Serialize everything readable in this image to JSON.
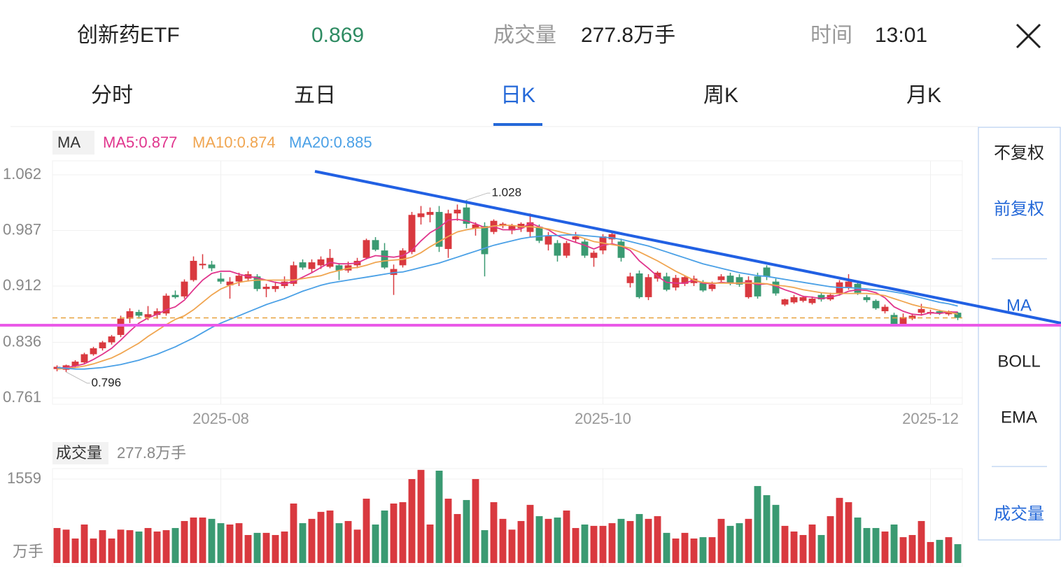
{
  "header": {
    "name": "创新药ETF",
    "price": "0.869",
    "volume_label": "成交量",
    "volume_value": "277.8万手",
    "time_label": "时间",
    "time": "13:01"
  },
  "tabs": [
    {
      "label": "分时",
      "active": false
    },
    {
      "label": "五日",
      "active": false
    },
    {
      "label": "日K",
      "active": true
    },
    {
      "label": "周K",
      "active": false
    },
    {
      "label": "月K",
      "active": false
    }
  ],
  "side_menu": [
    {
      "label": "不复权",
      "active": false
    },
    {
      "label": "前复权",
      "active": true
    },
    {
      "label": "MA",
      "active": true
    },
    {
      "label": "BOLL",
      "active": false
    },
    {
      "label": "EMA",
      "active": false
    },
    {
      "label": "成交量",
      "active": true
    }
  ],
  "chart_data": {
    "type": "candlestick",
    "indicator": "MA",
    "up_color": "#d9393f",
    "down_color": "#3a9a72",
    "last_color": "#e8a13c",
    "ylim": [
      0.7525,
      1.0762
    ],
    "yticks": [
      1.062,
      0.987,
      0.912,
      0.836,
      0.761
    ],
    "grid": true,
    "categories": [
      null,
      null,
      null,
      null,
      null,
      null,
      null,
      null,
      null,
      null,
      null,
      null,
      null,
      null,
      null,
      null,
      null,
      null,
      "2025-08",
      null,
      null,
      null,
      null,
      null,
      null,
      null,
      null,
      null,
      null,
      null,
      null,
      null,
      null,
      null,
      null,
      null,
      null,
      null,
      null,
      null,
      null,
      null,
      null,
      null,
      null,
      null,
      null,
      null,
      null,
      null,
      null,
      null,
      null,
      null,
      null,
      null,
      null,
      null,
      null,
      null,
      "2025-10",
      null,
      null,
      null,
      null,
      null,
      null,
      null,
      null,
      null,
      null,
      null,
      null,
      null,
      null,
      null,
      null,
      null,
      null,
      null,
      null,
      null,
      null,
      null,
      null,
      null,
      null,
      null,
      null,
      null,
      null,
      null,
      null,
      null,
      null,
      null,
      "2025-12",
      null,
      null,
      null
    ],
    "ohlc": [
      [
        0.8,
        0.805,
        0.797,
        0.803
      ],
      [
        0.799,
        0.806,
        0.796,
        0.805
      ],
      [
        0.804,
        0.812,
        0.802,
        0.81
      ],
      [
        0.809,
        0.822,
        0.807,
        0.82
      ],
      [
        0.82,
        0.83,
        0.818,
        0.828
      ],
      [
        0.828,
        0.838,
        0.825,
        0.836
      ],
      [
        0.836,
        0.846,
        0.833,
        0.844
      ],
      [
        0.846,
        0.872,
        0.843,
        0.868
      ],
      [
        0.868,
        0.882,
        0.862,
        0.878
      ],
      [
        0.877,
        0.88,
        0.868,
        0.872
      ],
      [
        0.87,
        0.885,
        0.866,
        0.874
      ],
      [
        0.873,
        0.882,
        0.868,
        0.878
      ],
      [
        0.875,
        0.902,
        0.872,
        0.899
      ],
      [
        0.9,
        0.906,
        0.895,
        0.897
      ],
      [
        0.898,
        0.921,
        0.895,
        0.918
      ],
      [
        0.92,
        0.952,
        0.918,
        0.946
      ],
      [
        0.94,
        0.955,
        0.935,
        0.942
      ],
      [
        0.941,
        0.946,
        0.932,
        0.936
      ],
      [
        0.922,
        0.93,
        0.915,
        0.918
      ],
      [
        0.913,
        0.924,
        0.895,
        0.918
      ],
      [
        0.918,
        0.93,
        0.912,
        0.926
      ],
      [
        0.922,
        0.932,
        0.918,
        0.928
      ],
      [
        0.925,
        0.928,
        0.905,
        0.908
      ],
      [
        0.908,
        0.915,
        0.897,
        0.911
      ],
      [
        0.908,
        0.918,
        0.904,
        0.912
      ],
      [
        0.912,
        0.925,
        0.909,
        0.918
      ],
      [
        0.915,
        0.945,
        0.912,
        0.94
      ],
      [
        0.944,
        0.948,
        0.934,
        0.937
      ],
      [
        0.935,
        0.948,
        0.93,
        0.944
      ],
      [
        0.94,
        0.952,
        0.935,
        0.948
      ],
      [
        0.938,
        0.962,
        0.936,
        0.95
      ],
      [
        0.94,
        0.943,
        0.92,
        0.933
      ],
      [
        0.933,
        0.945,
        0.93,
        0.94
      ],
      [
        0.94,
        0.95,
        0.936,
        0.946
      ],
      [
        0.95,
        0.976,
        0.948,
        0.974
      ],
      [
        0.974,
        0.978,
        0.959,
        0.961
      ],
      [
        0.96,
        0.97,
        0.935,
        0.937
      ],
      [
        0.927,
        0.941,
        0.9,
        0.935
      ],
      [
        0.94,
        0.963,
        0.937,
        0.96
      ],
      [
        0.958,
        1.012,
        0.955,
        1.008
      ],
      [
        1.005,
        1.02,
        0.995,
        1.01
      ],
      [
        1.008,
        1.018,
        0.998,
        1.012
      ],
      [
        1.012,
        1.02,
        0.958,
        0.965
      ],
      [
        0.962,
        1.015,
        0.95,
        1.01
      ],
      [
        1.01,
        1.022,
        1.0,
        1.015
      ],
      [
        1.018,
        1.028,
        0.99,
        0.996
      ],
      [
        0.99,
        0.998,
        0.98,
        0.995
      ],
      [
        0.993,
        0.998,
        0.925,
        0.955
      ],
      [
        0.985,
        1.002,
        0.982,
        1.0
      ],
      [
        0.993,
        0.998,
        0.99,
        0.996
      ],
      [
        0.987,
        0.996,
        0.982,
        0.993
      ],
      [
        0.99,
        0.998,
        0.985,
        0.996
      ],
      [
        0.985,
        1.01,
        0.978,
        0.998
      ],
      [
        0.992,
        0.995,
        0.97,
        0.973
      ],
      [
        0.968,
        0.985,
        0.96,
        0.98
      ],
      [
        0.97,
        0.974,
        0.945,
        0.953
      ],
      [
        0.953,
        0.973,
        0.95,
        0.97
      ],
      [
        0.975,
        0.985,
        0.97,
        0.979
      ],
      [
        0.972,
        0.975,
        0.95,
        0.953
      ],
      [
        0.95,
        0.96,
        0.938,
        0.957
      ],
      [
        0.96,
        0.982,
        0.955,
        0.979
      ],
      [
        0.975,
        0.985,
        0.97,
        0.982
      ],
      [
        0.972,
        0.976,
        0.945,
        0.95
      ],
      [
        0.916,
        0.93,
        0.91,
        0.925
      ],
      [
        0.929,
        0.933,
        0.895,
        0.897
      ],
      [
        0.897,
        0.928,
        0.893,
        0.924
      ],
      [
        0.922,
        0.932,
        0.918,
        0.93
      ],
      [
        0.925,
        0.93,
        0.905,
        0.907
      ],
      [
        0.91,
        0.927,
        0.906,
        0.923
      ],
      [
        0.915,
        0.926,
        0.912,
        0.924
      ],
      [
        0.916,
        0.926,
        0.912,
        0.922
      ],
      [
        0.916,
        0.92,
        0.904,
        0.906
      ],
      [
        0.908,
        0.918,
        0.905,
        0.914
      ],
      [
        0.92,
        0.928,
        0.917,
        0.925
      ],
      [
        0.926,
        0.93,
        0.913,
        0.916
      ],
      [
        0.924,
        0.928,
        0.911,
        0.914
      ],
      [
        0.897,
        0.925,
        0.895,
        0.92
      ],
      [
        0.925,
        0.93,
        0.895,
        0.898
      ],
      [
        0.937,
        0.94,
        0.92,
        0.925
      ],
      [
        0.918,
        0.922,
        0.899,
        0.902
      ],
      [
        0.887,
        0.895,
        0.885,
        0.894
      ],
      [
        0.89,
        0.9,
        0.888,
        0.897
      ],
      [
        0.892,
        0.899,
        0.89,
        0.897
      ],
      [
        0.889,
        0.898,
        0.887,
        0.895
      ],
      [
        0.9,
        0.903,
        0.891,
        0.894
      ],
      [
        0.894,
        0.903,
        0.892,
        0.9
      ],
      [
        0.902,
        0.92,
        0.899,
        0.917
      ],
      [
        0.91,
        0.928,
        0.907,
        0.918
      ],
      [
        0.915,
        0.918,
        0.9,
        0.903
      ],
      [
        0.897,
        0.9,
        0.89,
        0.893
      ],
      [
        0.892,
        0.894,
        0.88,
        0.882
      ],
      [
        0.878,
        0.887,
        0.875,
        0.884
      ],
      [
        0.873,
        0.876,
        0.858,
        0.86
      ],
      [
        0.86,
        0.875,
        0.858,
        0.87
      ],
      [
        0.868,
        0.875,
        0.866,
        0.872
      ],
      [
        0.876,
        0.888,
        0.872,
        0.881
      ],
      [
        0.875,
        0.88,
        0.873,
        0.877
      ],
      [
        0.878,
        0.88,
        0.873,
        0.875
      ],
      [
        0.874,
        0.879,
        0.872,
        0.878
      ],
      [
        0.876,
        0.877,
        0.866,
        0.869
      ]
    ],
    "ma": [
      {
        "name": "MA5:0.877",
        "color": "#e0358d",
        "values": [
          0.801,
          0.802,
          0.804,
          0.807,
          0.813,
          0.82,
          0.828,
          0.839,
          0.851,
          0.862,
          0.869,
          0.874,
          0.88,
          0.884,
          0.893,
          0.907,
          0.92,
          0.929,
          0.932,
          0.932,
          0.928,
          0.925,
          0.923,
          0.92,
          0.917,
          0.915,
          0.918,
          0.924,
          0.93,
          0.937,
          0.944,
          0.942,
          0.942,
          0.943,
          0.949,
          0.953,
          0.952,
          0.951,
          0.953,
          0.96,
          0.973,
          0.984,
          0.991,
          1.001,
          1.002,
          1.0,
          0.996,
          0.991,
          0.992,
          0.988,
          0.988,
          0.989,
          0.997,
          0.992,
          0.988,
          0.98,
          0.975,
          0.971,
          0.967,
          0.962,
          0.967,
          0.969,
          0.966,
          0.96,
          0.946,
          0.936,
          0.925,
          0.917,
          0.916,
          0.916,
          0.92,
          0.916,
          0.915,
          0.917,
          0.916,
          0.916,
          0.917,
          0.914,
          0.915,
          0.912,
          0.907,
          0.903,
          0.898,
          0.897,
          0.895,
          0.897,
          0.9,
          0.905,
          0.907,
          0.906,
          0.903,
          0.896,
          0.884,
          0.878,
          0.874,
          0.873,
          0.876,
          0.875,
          0.877,
          0.877
        ]
      },
      {
        "name": "MA10:0.874",
        "color": "#f0a550",
        "values": [
          0.8,
          0.801,
          0.802,
          0.804,
          0.807,
          0.811,
          0.815,
          0.821,
          0.828,
          0.835,
          0.844,
          0.852,
          0.86,
          0.867,
          0.872,
          0.88,
          0.89,
          0.9,
          0.908,
          0.913,
          0.917,
          0.919,
          0.92,
          0.92,
          0.92,
          0.92,
          0.92,
          0.922,
          0.924,
          0.926,
          0.93,
          0.933,
          0.936,
          0.937,
          0.94,
          0.944,
          0.946,
          0.947,
          0.948,
          0.951,
          0.957,
          0.965,
          0.972,
          0.979,
          0.985,
          0.988,
          0.99,
          0.991,
          0.993,
          0.994,
          0.994,
          0.992,
          0.992,
          0.991,
          0.989,
          0.986,
          0.983,
          0.98,
          0.976,
          0.972,
          0.97,
          0.968,
          0.966,
          0.963,
          0.958,
          0.952,
          0.946,
          0.939,
          0.932,
          0.926,
          0.92,
          0.917,
          0.916,
          0.916,
          0.916,
          0.916,
          0.916,
          0.916,
          0.915,
          0.913,
          0.912,
          0.91,
          0.907,
          0.905,
          0.903,
          0.902,
          0.902,
          0.902,
          0.902,
          0.902,
          0.901,
          0.899,
          0.895,
          0.891,
          0.887,
          0.884,
          0.882,
          0.879,
          0.877,
          0.874
        ]
      },
      {
        "name": "MA20:0.885",
        "color": "#4aa0e6",
        "values": [
          0.802,
          0.801,
          0.8,
          0.8,
          0.801,
          0.802,
          0.804,
          0.806,
          0.809,
          0.812,
          0.816,
          0.82,
          0.825,
          0.83,
          0.836,
          0.842,
          0.849,
          0.856,
          0.862,
          0.867,
          0.872,
          0.877,
          0.882,
          0.887,
          0.891,
          0.895,
          0.9,
          0.905,
          0.909,
          0.913,
          0.916,
          0.918,
          0.92,
          0.922,
          0.924,
          0.926,
          0.928,
          0.93,
          0.931,
          0.934,
          0.937,
          0.94,
          0.943,
          0.947,
          0.951,
          0.955,
          0.959,
          0.963,
          0.967,
          0.97,
          0.973,
          0.976,
          0.978,
          0.979,
          0.98,
          0.98,
          0.981,
          0.981,
          0.98,
          0.979,
          0.978,
          0.977,
          0.975,
          0.972,
          0.969,
          0.966,
          0.962,
          0.958,
          0.954,
          0.95,
          0.946,
          0.942,
          0.939,
          0.936,
          0.933,
          0.93,
          0.928,
          0.926,
          0.925,
          0.923,
          0.921,
          0.919,
          0.917,
          0.915,
          0.913,
          0.911,
          0.91,
          0.91,
          0.909,
          0.908,
          0.907,
          0.906,
          0.904,
          0.902,
          0.899,
          0.896,
          0.893,
          0.89,
          0.888,
          0.885
        ]
      }
    ],
    "volume": {
      "title": "成交量",
      "unit": "万手",
      "ylim": [
        0,
        1754
      ],
      "yticks": [
        1559
      ],
      "values": [
        650,
        620,
        455,
        715,
        455,
        610,
        455,
        620,
        610,
        585,
        650,
        585,
        610,
        650,
        780,
        845,
        845,
        820,
        740,
        715,
        740,
        520,
        560,
        560,
        520,
        585,
        1105,
        740,
        820,
        950,
        975,
        740,
        780,
        620,
        1195,
        715,
        975,
        1105,
        1130,
        1559,
        1730,
        715,
        1715,
        1195,
        910,
        1170,
        1560,
        610,
        1130,
        820,
        620,
        780,
        1080,
        870,
        820,
        845,
        975,
        650,
        715,
        690,
        690,
        740,
        820,
        780,
        910,
        820,
        870,
        560,
        455,
        560,
        455,
        480,
        480,
        820,
        690,
        740,
        820,
        1430,
        1260,
        1080,
        690,
        585,
        520,
        715,
        520,
        870,
        1210,
        1130,
        845,
        650,
        650,
        585,
        715,
        480,
        520,
        780,
        390,
        430,
        480,
        350
      ]
    }
  }
}
